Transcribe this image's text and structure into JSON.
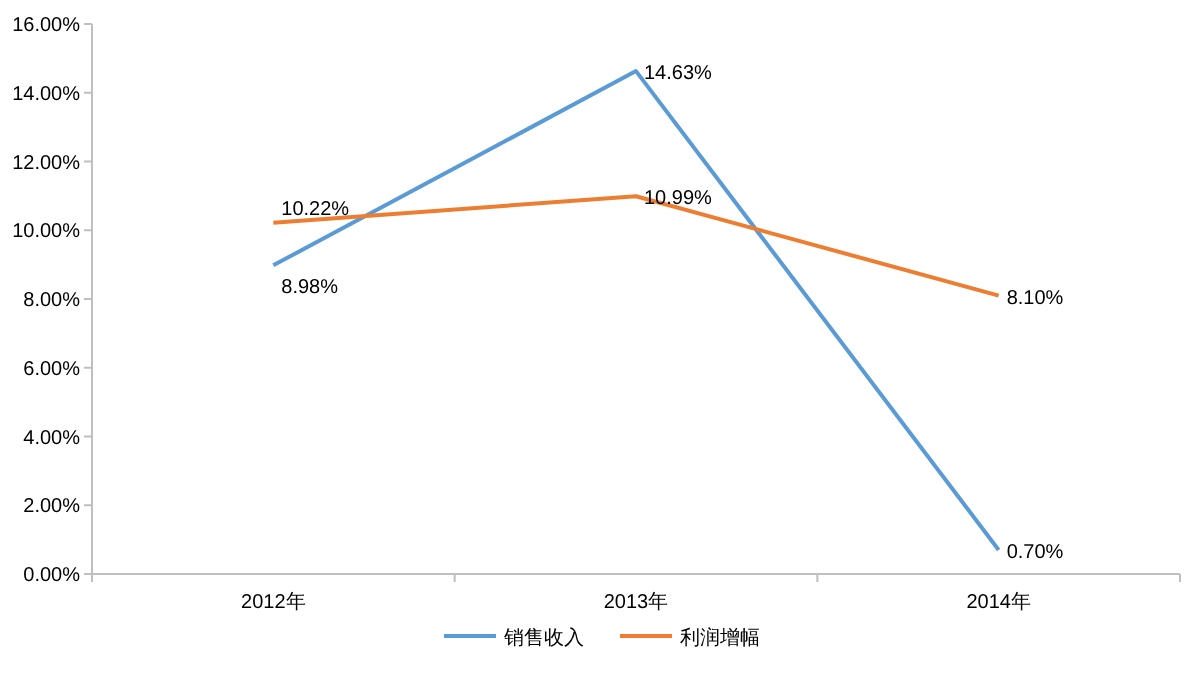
{
  "chart_data": {
    "type": "line",
    "categories": [
      "2012年",
      "2013年",
      "2014年"
    ],
    "series": [
      {
        "name": "销售收入",
        "color": "#5b9bd5",
        "values": [
          8.98,
          14.63,
          0.7
        ],
        "value_labels": [
          "8.98%",
          "14.63%",
          "0.70%"
        ]
      },
      {
        "name": "利润增幅",
        "color": "#ed7d31",
        "values": [
          10.22,
          10.99,
          8.1
        ],
        "value_labels": [
          "10.22%",
          "10.99%",
          "8.10%"
        ]
      }
    ],
    "ylim": [
      0,
      16
    ],
    "yticks": [
      {
        "value": 0,
        "label": "0.00%"
      },
      {
        "value": 2,
        "label": "2.00%"
      },
      {
        "value": 4,
        "label": "4.00%"
      },
      {
        "value": 6,
        "label": "6.00%"
      },
      {
        "value": 8,
        "label": "8.00%"
      },
      {
        "value": 10,
        "label": "10.00%"
      },
      {
        "value": 12,
        "label": "12.00%"
      },
      {
        "value": 14,
        "label": "14.00%"
      },
      {
        "value": 16,
        "label": "16.00%"
      }
    ],
    "grid": false,
    "legend": "bottom",
    "marker": "none",
    "line_style": "solid"
  }
}
